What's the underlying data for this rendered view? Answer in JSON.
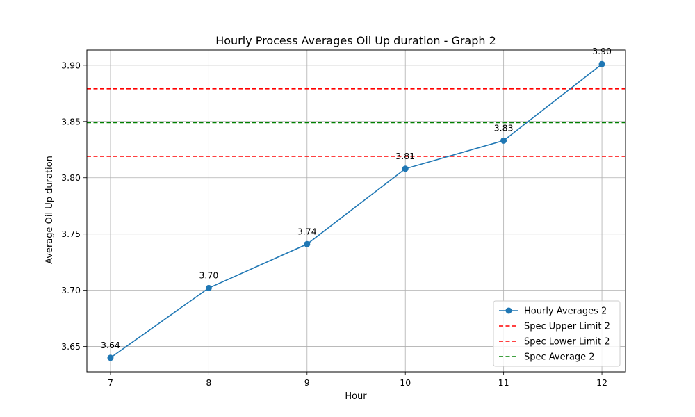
{
  "chart_data": {
    "type": "line",
    "title": "Hourly Process Averages Oil Up duration - Graph 2",
    "xlabel": "Hour",
    "ylabel": "Average Oil Up duration",
    "x": [
      7,
      8,
      9,
      10,
      11,
      12
    ],
    "x_tick_labels": [
      "7",
      "8",
      "9",
      "10",
      "11",
      "12"
    ],
    "xlim": [
      6.76,
      12.24
    ],
    "ylim": [
      3.6275,
      3.9135
    ],
    "y_ticks": [
      3.65,
      3.7,
      3.75,
      3.8,
      3.85,
      3.9
    ],
    "y_tick_labels": [
      "3.65",
      "3.70",
      "3.75",
      "3.80",
      "3.85",
      "3.90"
    ],
    "grid": true,
    "legend_position": "lower-right",
    "series": [
      {
        "name": "Hourly Averages 2",
        "color": "#1f77b4",
        "style": "solid-with-markers",
        "values": [
          3.64,
          3.702,
          3.741,
          3.808,
          3.833,
          3.901
        ],
        "data_labels": [
          "3.64",
          "3.70",
          "3.74",
          "3.81",
          "3.83",
          "3.90"
        ]
      }
    ],
    "reference_lines": [
      {
        "name": "Spec Upper Limit 2",
        "value": 3.879,
        "color": "#ff0000",
        "style": "dashed"
      },
      {
        "name": "Spec Lower Limit 2",
        "value": 3.819,
        "color": "#ff0000",
        "style": "dashed"
      },
      {
        "name": "Spec Average 2",
        "value": 3.849,
        "color": "#008000",
        "style": "dashed"
      }
    ]
  }
}
